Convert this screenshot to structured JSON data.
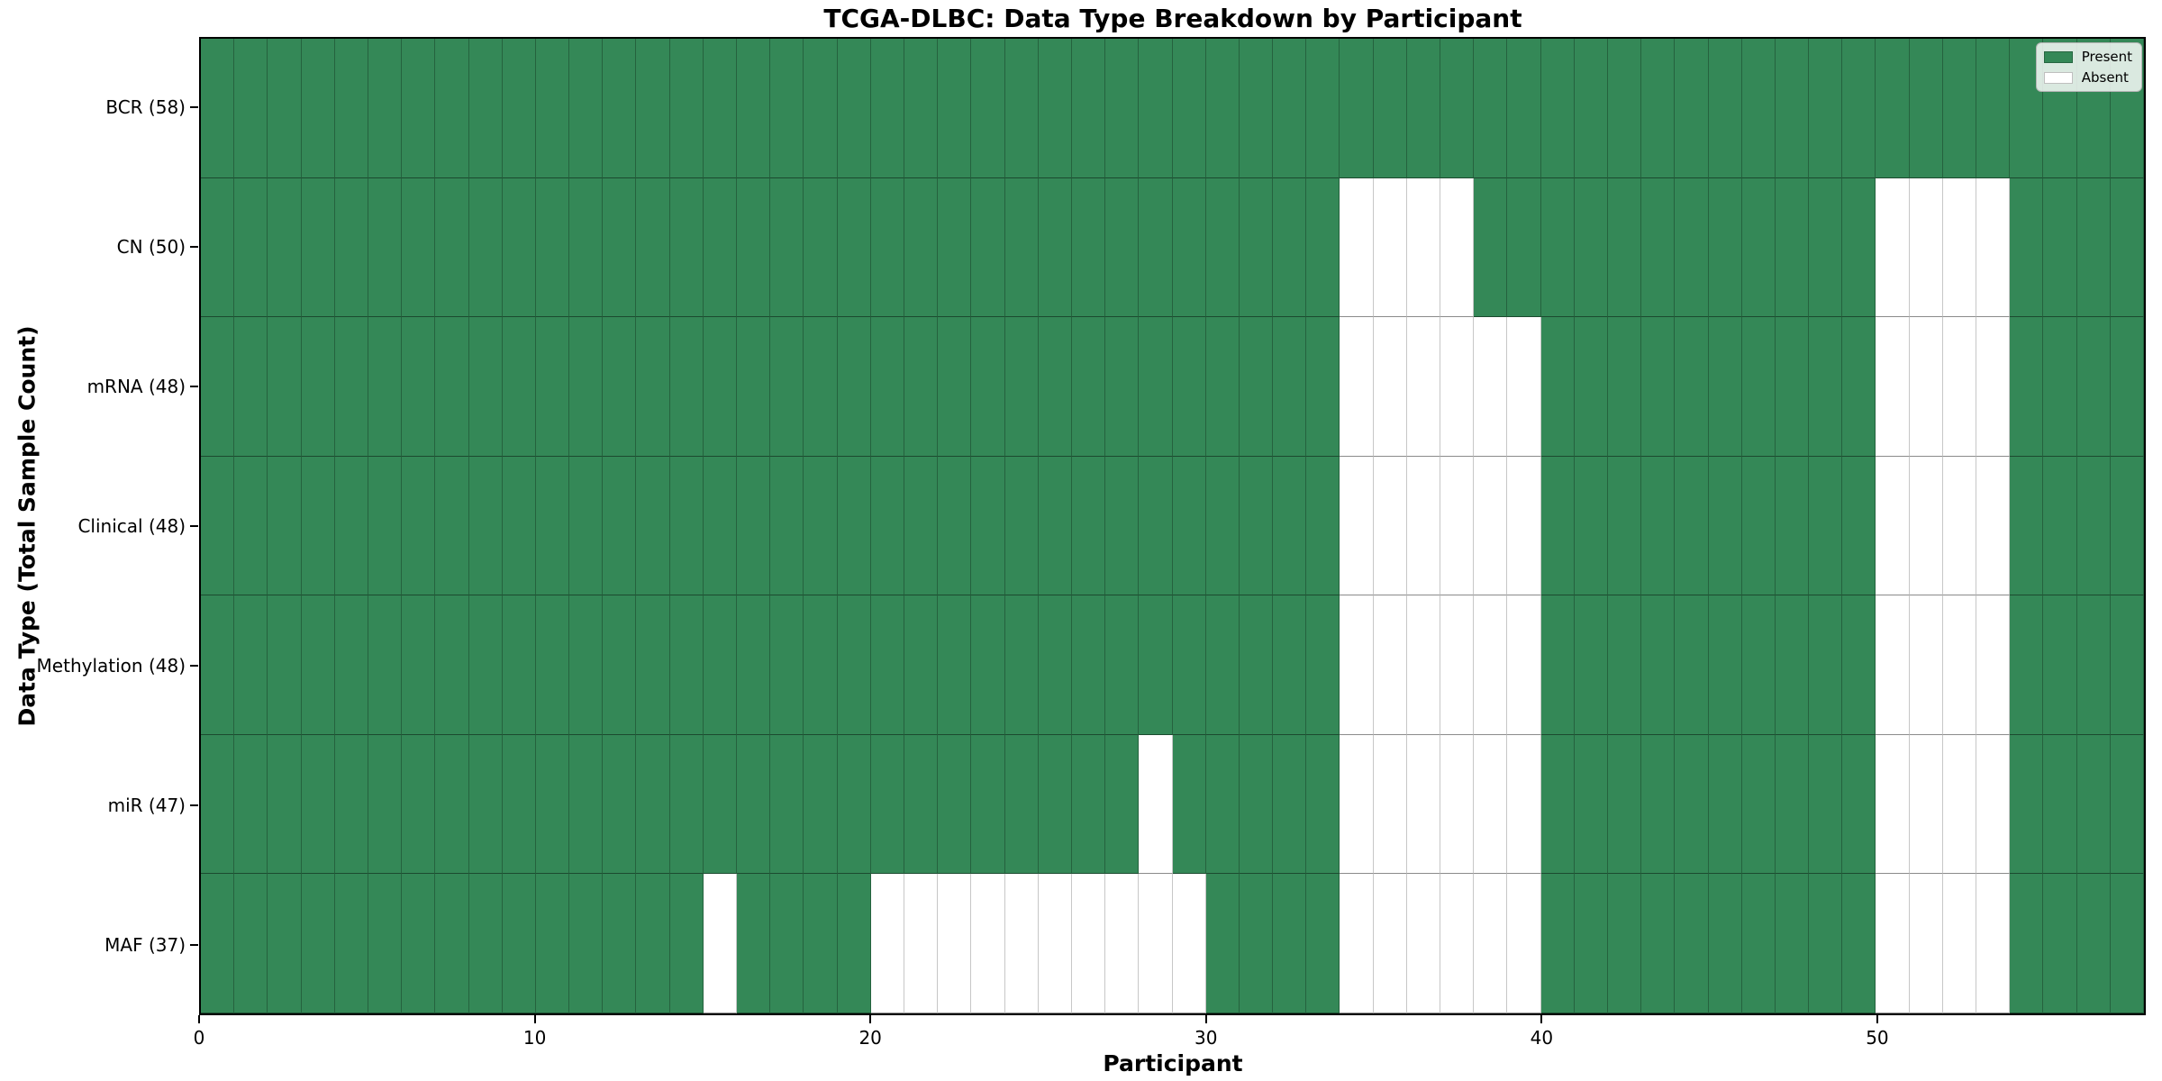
{
  "title": "TCGA-DLBC: Data Type Breakdown by Participant",
  "x_axis_label": "Participant",
  "y_axis_label": "Data Type (Total Sample Count)",
  "legend": {
    "present_label": "Present",
    "absent_label": "Absent"
  },
  "colors": {
    "present": "#348857",
    "absent": "#ffffff",
    "spine": "#000000"
  },
  "chart_data": {
    "type": "heatmap",
    "title": "TCGA-DLBC: Data Type Breakdown by Participant",
    "xlabel": "Participant",
    "ylabel": "Data Type (Total Sample Count)",
    "n_participants": 58,
    "x_ticks": [
      0,
      10,
      20,
      30,
      40,
      50
    ],
    "legend_entries": [
      {
        "label": "Present",
        "value": 1,
        "color": "#348857"
      },
      {
        "label": "Absent",
        "value": 0,
        "color": "#ffffff"
      }
    ],
    "rows": [
      {
        "data_type": "BCR",
        "label": "BCR (58)",
        "total_samples": 58,
        "absent_participants": []
      },
      {
        "data_type": "CN",
        "label": "CN (50)",
        "total_samples": 50,
        "absent_participants": [
          34,
          35,
          36,
          37,
          50,
          51,
          52,
          53
        ]
      },
      {
        "data_type": "mRNA",
        "label": "mRNA (48)",
        "total_samples": 48,
        "absent_participants": [
          34,
          35,
          36,
          37,
          38,
          39,
          50,
          51,
          52,
          53
        ]
      },
      {
        "data_type": "Clinical",
        "label": "Clinical (48)",
        "total_samples": 48,
        "absent_participants": [
          34,
          35,
          36,
          37,
          38,
          39,
          50,
          51,
          52,
          53
        ]
      },
      {
        "data_type": "Methylation",
        "label": "Methylation (48)",
        "total_samples": 48,
        "absent_participants": [
          34,
          35,
          36,
          37,
          38,
          39,
          50,
          51,
          52,
          53
        ]
      },
      {
        "data_type": "miR",
        "label": "miR (47)",
        "total_samples": 47,
        "absent_participants": [
          28,
          34,
          35,
          36,
          37,
          38,
          39,
          50,
          51,
          52,
          53
        ]
      },
      {
        "data_type": "MAF",
        "label": "MAF (37)",
        "total_samples": 37,
        "absent_participants": [
          15,
          20,
          21,
          22,
          23,
          24,
          25,
          26,
          27,
          28,
          29,
          34,
          35,
          36,
          37,
          38,
          39,
          50,
          51,
          52,
          53
        ]
      }
    ],
    "grid": true,
    "legend_position": "upper right"
  }
}
